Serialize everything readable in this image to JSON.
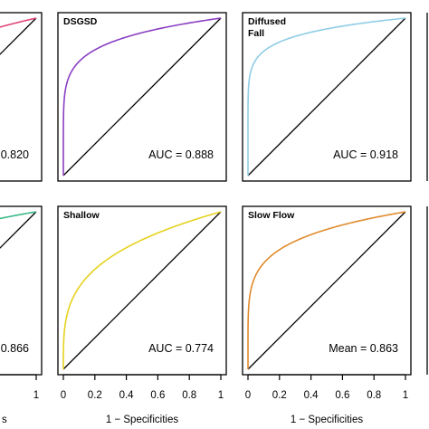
{
  "chart_data": {
    "type": "line",
    "xlabel": "1 − Specificities",
    "x_tick_labels": [
      "0",
      "0.2",
      "0.4",
      "0.6",
      "0.8",
      "1"
    ],
    "xlim": [
      0,
      1
    ],
    "ylim": [
      0,
      1
    ],
    "reference_line": "diagonal",
    "grid": false,
    "panels": [
      {
        "id": "p00",
        "title": "",
        "color": "#e0457a",
        "auc_text": "0.820",
        "k": 0.82,
        "ticks_visible": [],
        "xlabel_visible": ""
      },
      {
        "id": "p01",
        "title": "DSGSD",
        "color": "#8a3fc2",
        "auc_text": "AUC = 0.888",
        "k": 0.888,
        "ticks_visible": [],
        "xlabel_visible": ""
      },
      {
        "id": "p02",
        "title": "Diffused Fall",
        "title_lines": [
          "Diffused",
          "Fall"
        ],
        "color": "#8fcde6",
        "auc_text": "AUC = 0.918",
        "k": 0.918,
        "ticks_visible": [],
        "xlabel_visible": ""
      },
      {
        "id": "p10",
        "title": "",
        "color": "#3cb887",
        "auc_text": "0.866",
        "k": 0.866,
        "ticks_visible": [
          "8",
          "1"
        ],
        "xlabel_visible": "s"
      },
      {
        "id": "p11",
        "title": "Shallow",
        "color": "#e6d21e",
        "auc_text": "AUC = 0.774",
        "k": 0.774,
        "ticks_visible": [
          "0",
          "0.2",
          "0.4",
          "0.6",
          "0.8",
          "1"
        ],
        "xlabel_visible": "1 − Specificities"
      },
      {
        "id": "p12",
        "title": "Slow Flow",
        "color": "#e08b2c",
        "auc_text": "Mean = 0.863",
        "k": 0.863,
        "ticks_visible": [
          "0",
          "0.2",
          "0.4",
          "0.6",
          "0.8",
          "1"
        ],
        "xlabel_visible": "1 − Specificities"
      }
    ]
  }
}
